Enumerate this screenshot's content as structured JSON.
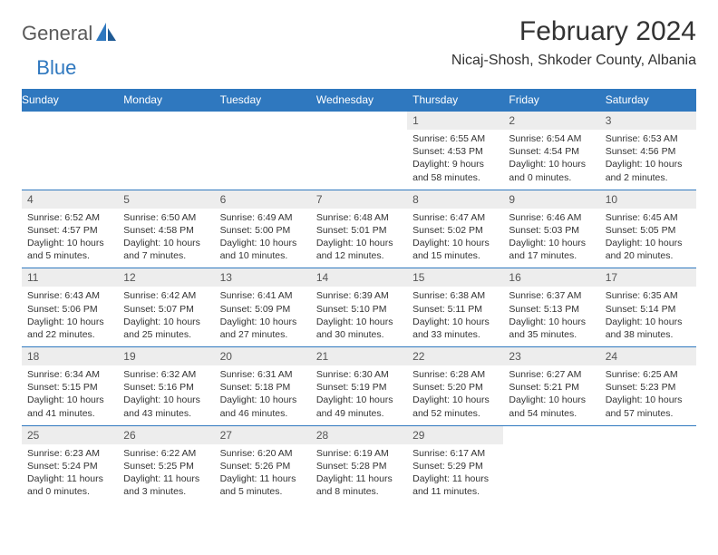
{
  "logo": {
    "general": "General",
    "blue": "Blue"
  },
  "title": "February 2024",
  "location": "Nicaj-Shosh, Shkoder County, Albania",
  "colors": {
    "header_bg": "#2f78bf",
    "header_text": "#ffffff",
    "daynum_bg": "#ededed",
    "border": "#2f78bf",
    "text": "#333333",
    "logo_gray": "#5a5a5a",
    "logo_blue": "#2f78bf"
  },
  "dayNames": [
    "Sunday",
    "Monday",
    "Tuesday",
    "Wednesday",
    "Thursday",
    "Friday",
    "Saturday"
  ],
  "weeks": [
    [
      null,
      null,
      null,
      null,
      {
        "num": "1",
        "sunrise": "Sunrise: 6:55 AM",
        "sunset": "Sunset: 4:53 PM",
        "daylight": "Daylight: 9 hours and 58 minutes."
      },
      {
        "num": "2",
        "sunrise": "Sunrise: 6:54 AM",
        "sunset": "Sunset: 4:54 PM",
        "daylight": "Daylight: 10 hours and 0 minutes."
      },
      {
        "num": "3",
        "sunrise": "Sunrise: 6:53 AM",
        "sunset": "Sunset: 4:56 PM",
        "daylight": "Daylight: 10 hours and 2 minutes."
      }
    ],
    [
      {
        "num": "4",
        "sunrise": "Sunrise: 6:52 AM",
        "sunset": "Sunset: 4:57 PM",
        "daylight": "Daylight: 10 hours and 5 minutes."
      },
      {
        "num": "5",
        "sunrise": "Sunrise: 6:50 AM",
        "sunset": "Sunset: 4:58 PM",
        "daylight": "Daylight: 10 hours and 7 minutes."
      },
      {
        "num": "6",
        "sunrise": "Sunrise: 6:49 AM",
        "sunset": "Sunset: 5:00 PM",
        "daylight": "Daylight: 10 hours and 10 minutes."
      },
      {
        "num": "7",
        "sunrise": "Sunrise: 6:48 AM",
        "sunset": "Sunset: 5:01 PM",
        "daylight": "Daylight: 10 hours and 12 minutes."
      },
      {
        "num": "8",
        "sunrise": "Sunrise: 6:47 AM",
        "sunset": "Sunset: 5:02 PM",
        "daylight": "Daylight: 10 hours and 15 minutes."
      },
      {
        "num": "9",
        "sunrise": "Sunrise: 6:46 AM",
        "sunset": "Sunset: 5:03 PM",
        "daylight": "Daylight: 10 hours and 17 minutes."
      },
      {
        "num": "10",
        "sunrise": "Sunrise: 6:45 AM",
        "sunset": "Sunset: 5:05 PM",
        "daylight": "Daylight: 10 hours and 20 minutes."
      }
    ],
    [
      {
        "num": "11",
        "sunrise": "Sunrise: 6:43 AM",
        "sunset": "Sunset: 5:06 PM",
        "daylight": "Daylight: 10 hours and 22 minutes."
      },
      {
        "num": "12",
        "sunrise": "Sunrise: 6:42 AM",
        "sunset": "Sunset: 5:07 PM",
        "daylight": "Daylight: 10 hours and 25 minutes."
      },
      {
        "num": "13",
        "sunrise": "Sunrise: 6:41 AM",
        "sunset": "Sunset: 5:09 PM",
        "daylight": "Daylight: 10 hours and 27 minutes."
      },
      {
        "num": "14",
        "sunrise": "Sunrise: 6:39 AM",
        "sunset": "Sunset: 5:10 PM",
        "daylight": "Daylight: 10 hours and 30 minutes."
      },
      {
        "num": "15",
        "sunrise": "Sunrise: 6:38 AM",
        "sunset": "Sunset: 5:11 PM",
        "daylight": "Daylight: 10 hours and 33 minutes."
      },
      {
        "num": "16",
        "sunrise": "Sunrise: 6:37 AM",
        "sunset": "Sunset: 5:13 PM",
        "daylight": "Daylight: 10 hours and 35 minutes."
      },
      {
        "num": "17",
        "sunrise": "Sunrise: 6:35 AM",
        "sunset": "Sunset: 5:14 PM",
        "daylight": "Daylight: 10 hours and 38 minutes."
      }
    ],
    [
      {
        "num": "18",
        "sunrise": "Sunrise: 6:34 AM",
        "sunset": "Sunset: 5:15 PM",
        "daylight": "Daylight: 10 hours and 41 minutes."
      },
      {
        "num": "19",
        "sunrise": "Sunrise: 6:32 AM",
        "sunset": "Sunset: 5:16 PM",
        "daylight": "Daylight: 10 hours and 43 minutes."
      },
      {
        "num": "20",
        "sunrise": "Sunrise: 6:31 AM",
        "sunset": "Sunset: 5:18 PM",
        "daylight": "Daylight: 10 hours and 46 minutes."
      },
      {
        "num": "21",
        "sunrise": "Sunrise: 6:30 AM",
        "sunset": "Sunset: 5:19 PM",
        "daylight": "Daylight: 10 hours and 49 minutes."
      },
      {
        "num": "22",
        "sunrise": "Sunrise: 6:28 AM",
        "sunset": "Sunset: 5:20 PM",
        "daylight": "Daylight: 10 hours and 52 minutes."
      },
      {
        "num": "23",
        "sunrise": "Sunrise: 6:27 AM",
        "sunset": "Sunset: 5:21 PM",
        "daylight": "Daylight: 10 hours and 54 minutes."
      },
      {
        "num": "24",
        "sunrise": "Sunrise: 6:25 AM",
        "sunset": "Sunset: 5:23 PM",
        "daylight": "Daylight: 10 hours and 57 minutes."
      }
    ],
    [
      {
        "num": "25",
        "sunrise": "Sunrise: 6:23 AM",
        "sunset": "Sunset: 5:24 PM",
        "daylight": "Daylight: 11 hours and 0 minutes."
      },
      {
        "num": "26",
        "sunrise": "Sunrise: 6:22 AM",
        "sunset": "Sunset: 5:25 PM",
        "daylight": "Daylight: 11 hours and 3 minutes."
      },
      {
        "num": "27",
        "sunrise": "Sunrise: 6:20 AM",
        "sunset": "Sunset: 5:26 PM",
        "daylight": "Daylight: 11 hours and 5 minutes."
      },
      {
        "num": "28",
        "sunrise": "Sunrise: 6:19 AM",
        "sunset": "Sunset: 5:28 PM",
        "daylight": "Daylight: 11 hours and 8 minutes."
      },
      {
        "num": "29",
        "sunrise": "Sunrise: 6:17 AM",
        "sunset": "Sunset: 5:29 PM",
        "daylight": "Daylight: 11 hours and 11 minutes."
      },
      null,
      null
    ]
  ]
}
